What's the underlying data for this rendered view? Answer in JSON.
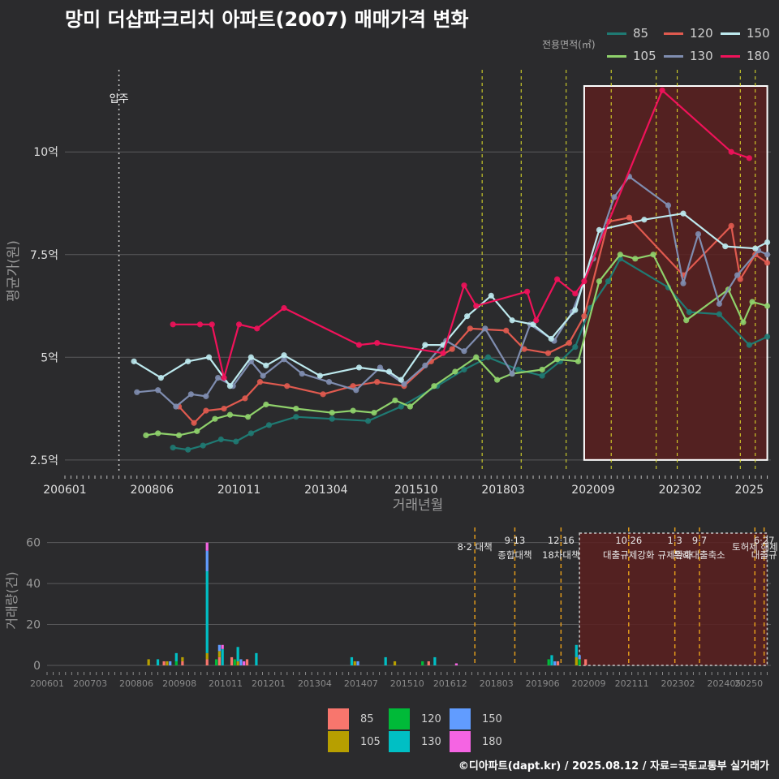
{
  "title": "망미 더샵파크리치 아파트(2007) 매매가격 변화",
  "footer": "©디아파트(dapt.kr) / 2025.08.12 / 자료=국토교통부 실거래가",
  "legend_caption": "전용면적(㎡)",
  "colors": {
    "background": "#2b2b2d",
    "grid": "#5a5a5c",
    "policy_line": "#e5e52a",
    "policy_line_bottom": "#e09a1b",
    "highlight_fill": "#5a2020",
    "highlight_border_top": "#ffffff",
    "highlight_border_bottom": "#c8c8c8",
    "line_series": {
      "85": "#1f7a73",
      "105": "#8fd16b",
      "120": "#e05a4f",
      "130": "#7f8db0",
      "150": "#bde9ee",
      "180": "#f0125a"
    },
    "bar_series": {
      "85": "#f8766d",
      "105": "#b79f00",
      "120": "#00ba38",
      "130": "#00bfc4",
      "150": "#619cff",
      "180": "#f564e3"
    }
  },
  "chart_data": [
    {
      "type": "line",
      "xlabel": "거래년월",
      "ylabel": "평균가(원)",
      "x_ticks": [
        "200601",
        "200806",
        "201011",
        "201304",
        "201510",
        "201803",
        "202009",
        "202302",
        "2025"
      ],
      "y_ticks": [
        "2.5억",
        "5억",
        "7.5억",
        "10억"
      ],
      "ylim_eok": [
        2.2,
        12.0
      ],
      "move_in_label": "입주",
      "move_in_date": "2007-07",
      "policy_dates": [
        "2017-08",
        "2018-09",
        "2019-12",
        "2021-03",
        "2022-06",
        "2023-01",
        "2024-10",
        "2025-03"
      ],
      "highlight_range": [
        "2020-06",
        "2025-07"
      ],
      "series": [
        {
          "name": "85",
          "points": [
            [
              "2009-01",
              2.8
            ],
            [
              "2009-06",
              2.75
            ],
            [
              "2009-11",
              2.85
            ],
            [
              "2010-05",
              3.0
            ],
            [
              "2010-10",
              2.95
            ],
            [
              "2011-03",
              3.15
            ],
            [
              "2011-09",
              3.35
            ],
            [
              "2012-06",
              3.55
            ],
            [
              "2013-06",
              3.5
            ],
            [
              "2014-06",
              3.45
            ],
            [
              "2015-05",
              3.8
            ],
            [
              "2016-05",
              4.3
            ],
            [
              "2017-02",
              4.7
            ],
            [
              "2017-10",
              5.0
            ],
            [
              "2018-08",
              4.7
            ],
            [
              "2019-04",
              4.55
            ],
            [
              "2019-10",
              4.9
            ],
            [
              "2020-03",
              5.25
            ],
            [
              "2020-08",
              6.2
            ],
            [
              "2021-02",
              6.85
            ],
            [
              "2021-06",
              7.4
            ],
            [
              "2022-10",
              6.7
            ],
            [
              "2023-05",
              6.1
            ],
            [
              "2024-03",
              6.05
            ],
            [
              "2025-01",
              5.3
            ],
            [
              "2025-07",
              5.5
            ]
          ]
        },
        {
          "name": "105",
          "points": [
            [
              "2008-04",
              3.1
            ],
            [
              "2008-08",
              3.15
            ],
            [
              "2009-03",
              3.1
            ],
            [
              "2009-09",
              3.2
            ],
            [
              "2010-03",
              3.5
            ],
            [
              "2010-08",
              3.6
            ],
            [
              "2011-02",
              3.55
            ],
            [
              "2011-08",
              3.85
            ],
            [
              "2012-06",
              3.75
            ],
            [
              "2013-06",
              3.65
            ],
            [
              "2014-01",
              3.7
            ],
            [
              "2014-08",
              3.65
            ],
            [
              "2015-03",
              3.95
            ],
            [
              "2015-08",
              3.8
            ],
            [
              "2016-04",
              4.3
            ],
            [
              "2016-11",
              4.65
            ],
            [
              "2017-06",
              5.0
            ],
            [
              "2018-01",
              4.45
            ],
            [
              "2018-06",
              4.6
            ],
            [
              "2019-04",
              4.7
            ],
            [
              "2019-09",
              4.95
            ],
            [
              "2020-04",
              4.9
            ],
            [
              "2020-11",
              6.85
            ],
            [
              "2021-06",
              7.5
            ],
            [
              "2021-11",
              7.4
            ],
            [
              "2022-05",
              7.5
            ],
            [
              "2023-04",
              5.9
            ],
            [
              "2024-06",
              6.65
            ],
            [
              "2024-11",
              5.85
            ],
            [
              "2025-02",
              6.35
            ],
            [
              "2025-07",
              6.25
            ]
          ]
        },
        {
          "name": "120",
          "points": [
            [
              "2009-03",
              3.8
            ],
            [
              "2009-08",
              3.4
            ],
            [
              "2009-12",
              3.7
            ],
            [
              "2010-06",
              3.75
            ],
            [
              "2011-01",
              4.0
            ],
            [
              "2011-06",
              4.4
            ],
            [
              "2012-03",
              4.3
            ],
            [
              "2013-03",
              4.1
            ],
            [
              "2014-01",
              4.3
            ],
            [
              "2014-09",
              4.4
            ],
            [
              "2015-06",
              4.3
            ],
            [
              "2016-03",
              4.9
            ],
            [
              "2016-10",
              5.2
            ],
            [
              "2017-04",
              5.7
            ],
            [
              "2018-04",
              5.65
            ],
            [
              "2018-10",
              5.2
            ],
            [
              "2019-06",
              5.1
            ],
            [
              "2020-01",
              5.35
            ],
            [
              "2020-06",
              6.0
            ],
            [
              "2021-02",
              8.3
            ],
            [
              "2021-09",
              8.4
            ],
            [
              "2023-03",
              7.0
            ],
            [
              "2024-07",
              8.2
            ],
            [
              "2024-10",
              6.9
            ],
            [
              "2025-03",
              7.5
            ],
            [
              "2025-07",
              7.3
            ]
          ]
        },
        {
          "name": "130",
          "points": [
            [
              "2008-01",
              4.15
            ],
            [
              "2008-08",
              4.2
            ],
            [
              "2009-02",
              3.8
            ],
            [
              "2009-07",
              4.1
            ],
            [
              "2009-12",
              4.05
            ],
            [
              "2010-04",
              4.5
            ],
            [
              "2010-09",
              4.3
            ],
            [
              "2011-03",
              4.9
            ],
            [
              "2011-07",
              4.55
            ],
            [
              "2012-02",
              4.95
            ],
            [
              "2012-08",
              4.6
            ],
            [
              "2013-05",
              4.4
            ],
            [
              "2014-02",
              4.2
            ],
            [
              "2014-10",
              4.75
            ],
            [
              "2015-06",
              4.35
            ],
            [
              "2016-01",
              4.8
            ],
            [
              "2016-08",
              5.4
            ],
            [
              "2017-02",
              5.15
            ],
            [
              "2017-09",
              5.7
            ],
            [
              "2018-06",
              4.6
            ],
            [
              "2018-12",
              5.8
            ],
            [
              "2019-08",
              5.4
            ],
            [
              "2020-02",
              6.1
            ],
            [
              "2020-09",
              7.4
            ],
            [
              "2021-04",
              8.9
            ],
            [
              "2021-09",
              9.4
            ],
            [
              "2022-10",
              8.7
            ],
            [
              "2023-03",
              6.8
            ],
            [
              "2023-08",
              8.0
            ],
            [
              "2024-03",
              6.3
            ],
            [
              "2024-09",
              7.0
            ],
            [
              "2025-04",
              7.6
            ],
            [
              "2025-07",
              7.5
            ]
          ]
        },
        {
          "name": "150",
          "points": [
            [
              "2007-12",
              4.9
            ],
            [
              "2008-09",
              4.5
            ],
            [
              "2009-06",
              4.9
            ],
            [
              "2010-01",
              5.0
            ],
            [
              "2010-08",
              4.3
            ],
            [
              "2011-03",
              5.0
            ],
            [
              "2011-08",
              4.8
            ],
            [
              "2012-02",
              5.05
            ],
            [
              "2013-02",
              4.55
            ],
            [
              "2014-03",
              4.75
            ],
            [
              "2015-01",
              4.65
            ],
            [
              "2015-05",
              4.45
            ],
            [
              "2016-01",
              5.3
            ],
            [
              "2016-07",
              5.3
            ],
            [
              "2017-03",
              6.0
            ],
            [
              "2017-11",
              6.5
            ],
            [
              "2018-06",
              5.9
            ],
            [
              "2019-01",
              5.8
            ],
            [
              "2019-07",
              5.45
            ],
            [
              "2020-03",
              6.15
            ],
            [
              "2020-11",
              8.1
            ],
            [
              "2022-02",
              8.35
            ],
            [
              "2023-03",
              8.5
            ],
            [
              "2024-05",
              7.7
            ],
            [
              "2025-03",
              7.65
            ],
            [
              "2025-07",
              7.8
            ]
          ]
        },
        {
          "name": "180",
          "points": [
            [
              "2009-01",
              5.8
            ],
            [
              "2009-10",
              5.8
            ],
            [
              "2010-02",
              5.8
            ],
            [
              "2010-06",
              4.5
            ],
            [
              "2010-11",
              5.8
            ],
            [
              "2011-05",
              5.7
            ],
            [
              "2012-02",
              6.2
            ],
            [
              "2014-03",
              5.3
            ],
            [
              "2014-09",
              5.35
            ],
            [
              "2016-07",
              5.1
            ],
            [
              "2017-02",
              6.75
            ],
            [
              "2017-06",
              6.25
            ],
            [
              "2018-11",
              6.6
            ],
            [
              "2019-02",
              5.9
            ],
            [
              "2019-09",
              6.9
            ],
            [
              "2020-03",
              6.55
            ],
            [
              "2020-06",
              6.85
            ],
            [
              "2022-08",
              11.5
            ],
            [
              "2024-07",
              10.0
            ],
            [
              "2025-01",
              9.85
            ]
          ]
        }
      ]
    },
    {
      "type": "bar",
      "stacked": true,
      "ylabel": "거래량(건)",
      "ylim": [
        0,
        65
      ],
      "y_ticks": [
        0,
        20,
        40,
        60
      ],
      "x_ticks": [
        "200601",
        "200703",
        "200806",
        "200908",
        "201011",
        "201201",
        "201304",
        "201407",
        "201510",
        "201612",
        "201803",
        "201906",
        "202009",
        "202111",
        "202302",
        "202405",
        "20250"
      ],
      "policy_events": [
        {
          "date": "2017-08",
          "label": "8·2 대책"
        },
        {
          "date": "2018-09",
          "label": "9·13",
          "label2": "종합대책"
        },
        {
          "date": "2019-12",
          "label": "12·16",
          "label2": "18차대책"
        },
        {
          "date": "2021-10",
          "label": "10·26",
          "label2": "대출규제강화"
        },
        {
          "date": "2023-01",
          "label": "1·3",
          "label2": "규제완화"
        },
        {
          "date": "2023-09",
          "label": "9·7",
          "label2": "특례대출축소"
        },
        {
          "date": "2025-03",
          "label": "토허제 해제"
        },
        {
          "date": "2025-06",
          "label": "6·27",
          "label2": "대출규"
        }
      ],
      "highlight_range": [
        "2020-06",
        "2025-07"
      ],
      "series": [
        {
          "name": "85",
          "months": [
            "2009-03",
            "2009-09",
            "2010-05",
            "2010-09",
            "2011-01",
            "2011-06",
            "2016-05",
            "2019-11",
            "2020-08"
          ],
          "values": [
            2,
            2,
            3,
            4,
            4,
            3,
            2,
            2,
            3
          ]
        },
        {
          "name": "105",
          "months": [
            "2008-10",
            "2009-04",
            "2009-09",
            "2010-05",
            "2010-09",
            "2011-03",
            "2014-05",
            "2015-06",
            "2020-05"
          ],
          "values": [
            3,
            2,
            2,
            3,
            3,
            2,
            2,
            2,
            4
          ]
        },
        {
          "name": "120",
          "months": [
            "2009-07",
            "2010-08",
            "2011-02",
            "2016-03",
            "2019-08",
            "2020-06"
          ],
          "values": [
            2,
            3,
            3,
            2,
            3,
            3
          ]
        },
        {
          "name": "130",
          "months": [
            "2009-01",
            "2009-07",
            "2010-05",
            "2010-10",
            "2011-03",
            "2011-09",
            "2014-04",
            "2015-03",
            "2016-07",
            "2019-09",
            "2020-05"
          ],
          "values": [
            3,
            4,
            40,
            8,
            7,
            6,
            4,
            4,
            4,
            5,
            6
          ]
        },
        {
          "name": "150",
          "months": [
            "2009-05",
            "2010-05",
            "2010-09",
            "2011-04",
            "2014-06",
            "2019-10",
            "2020-06"
          ],
          "values": [
            2,
            10,
            3,
            3,
            2,
            2,
            2
          ]
        },
        {
          "name": "180",
          "months": [
            "2010-05",
            "2010-10",
            "2011-05",
            "2017-02"
          ],
          "values": [
            4,
            2,
            2,
            1
          ]
        }
      ]
    }
  ]
}
